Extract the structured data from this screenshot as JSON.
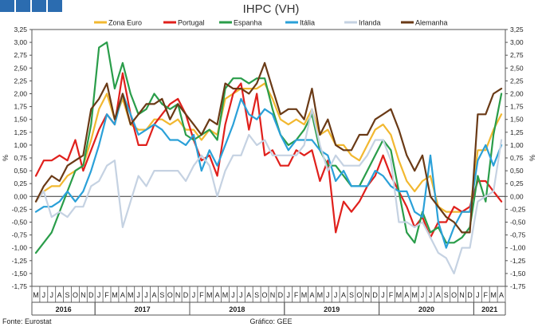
{
  "title": "IHPC (VH)",
  "source": "Fonte: Eurostat",
  "credit": "Gráfico: GEE",
  "header_boxes": {
    "color": "#2b6cb0",
    "count": 4
  },
  "chart_data": {
    "type": "line",
    "title": "IHPC (VH)",
    "ylabel_left": "%",
    "ylabel_right": "%",
    "ylim": [
      -1.75,
      3.25
    ],
    "ytick_step": 0.25,
    "grid": false,
    "legend_position": "top",
    "month_labels": [
      "M",
      "J",
      "J",
      "A",
      "S",
      "O",
      "N",
      "D",
      "J",
      "F",
      "M",
      "A",
      "M",
      "J",
      "J",
      "A",
      "S",
      "O",
      "N",
      "D",
      "J",
      "F",
      "M",
      "A",
      "M",
      "J",
      "J",
      "A",
      "S",
      "O",
      "N",
      "D",
      "J",
      "F",
      "M",
      "A",
      "M",
      "J",
      "J",
      "A",
      "S",
      "O",
      "N",
      "D",
      "J",
      "F",
      "M",
      "A",
      "M",
      "J",
      "J",
      "A",
      "S",
      "O",
      "N",
      "D",
      "J",
      "F",
      "M",
      "A"
    ],
    "year_labels": [
      {
        "label": "2016",
        "start": 0,
        "end": 7
      },
      {
        "label": "2017",
        "start": 8,
        "end": 19
      },
      {
        "label": "2018",
        "start": 20,
        "end": 31
      },
      {
        "label": "2019",
        "start": 32,
        "end": 43
      },
      {
        "label": "2020",
        "start": 44,
        "end": 55
      },
      {
        "label": "2021",
        "start": 56,
        "end": 59
      }
    ],
    "series": [
      {
        "name": "Zona Euro",
        "color": "#f2b830",
        "values": [
          -0.1,
          0.1,
          0.2,
          0.2,
          0.4,
          0.5,
          0.6,
          1.1,
          1.7,
          2.0,
          1.5,
          1.9,
          1.4,
          1.3,
          1.3,
          1.5,
          1.5,
          1.4,
          1.5,
          1.3,
          1.3,
          1.1,
          1.3,
          1.2,
          1.9,
          2.0,
          2.1,
          2.1,
          2.1,
          2.2,
          1.9,
          1.5,
          1.4,
          1.5,
          1.4,
          1.7,
          1.2,
          1.3,
          1.0,
          1.0,
          0.8,
          0.7,
          1.0,
          1.3,
          1.4,
          1.2,
          0.7,
          0.3,
          0.1,
          0.3,
          0.4,
          -0.2,
          -0.3,
          -0.3,
          -0.3,
          -0.3,
          0.9,
          0.9,
          1.3,
          1.6
        ]
      },
      {
        "name": "Portugal",
        "color": "#e0201c",
        "values": [
          0.4,
          0.7,
          0.7,
          0.8,
          0.7,
          1.1,
          0.5,
          0.9,
          1.3,
          1.6,
          1.4,
          2.4,
          1.6,
          1.0,
          1.0,
          1.4,
          1.6,
          1.8,
          1.9,
          1.6,
          1.1,
          0.7,
          0.8,
          0.4,
          1.4,
          2.0,
          2.2,
          1.3,
          2.0,
          0.8,
          0.9,
          0.6,
          0.6,
          0.9,
          0.8,
          0.9,
          0.3,
          0.7,
          -0.7,
          -0.1,
          -0.3,
          -0.1,
          0.2,
          0.4,
          0.8,
          0.4,
          0.1,
          -0.2,
          -0.6,
          -0.4,
          -0.8,
          -0.5,
          -0.5,
          -0.2,
          -0.3,
          -0.2,
          0.3,
          0.3,
          0.1,
          -0.1
        ]
      },
      {
        "name": "Espanha",
        "color": "#2a9d4a",
        "values": [
          -1.1,
          -0.9,
          -0.7,
          -0.3,
          0.1,
          0.5,
          0.6,
          1.4,
          2.9,
          3.0,
          2.1,
          2.6,
          2.0,
          1.6,
          1.7,
          2.0,
          1.8,
          1.7,
          1.8,
          1.2,
          1.1,
          1.2,
          1.3,
          1.1,
          2.1,
          2.3,
          2.3,
          2.2,
          2.3,
          2.3,
          1.7,
          1.2,
          1.0,
          1.1,
          1.3,
          1.6,
          0.9,
          0.6,
          0.6,
          0.4,
          0.2,
          0.2,
          0.5,
          0.8,
          1.1,
          0.9,
          0.1,
          -0.7,
          -0.9,
          -0.3,
          -0.7,
          -0.6,
          -0.9,
          -0.9,
          -0.8,
          -0.6,
          0.4,
          -0.1,
          1.2,
          2.0
        ]
      },
      {
        "name": "Itália",
        "color": "#2aa0d8",
        "values": [
          -0.3,
          -0.2,
          -0.2,
          -0.1,
          0.1,
          -0.1,
          0.1,
          0.5,
          1.0,
          1.6,
          1.4,
          2.0,
          1.6,
          1.2,
          1.3,
          1.4,
          1.3,
          1.1,
          1.1,
          1.0,
          1.2,
          0.5,
          0.9,
          0.6,
          1.0,
          1.4,
          1.9,
          1.6,
          1.5,
          1.7,
          1.6,
          1.2,
          0.9,
          1.1,
          1.1,
          1.1,
          0.9,
          0.8,
          0.3,
          0.5,
          0.2,
          0.2,
          0.2,
          0.5,
          0.4,
          0.2,
          0.1,
          0.1,
          -0.3,
          -0.4,
          0.8,
          -0.5,
          -1.0,
          -0.6,
          -0.3,
          -0.3,
          0.7,
          1.0,
          0.6,
          1.0
        ]
      },
      {
        "name": "Irlanda",
        "color": "#c5d2e2",
        "values": [
          -0.1,
          0.1,
          -0.4,
          -0.3,
          -0.4,
          -0.2,
          -0.2,
          0.2,
          0.3,
          0.6,
          0.7,
          -0.6,
          -0.1,
          0.4,
          0.2,
          0.5,
          0.5,
          0.5,
          0.5,
          0.3,
          0.6,
          0.8,
          0.6,
          0.0,
          0.5,
          0.8,
          0.8,
          1.2,
          1.0,
          1.1,
          0.8,
          0.8,
          0.8,
          0.8,
          1.0,
          1.7,
          1.0,
          0.5,
          0.8,
          0.6,
          0.6,
          0.6,
          0.8,
          1.1,
          1.1,
          0.7,
          -0.5,
          -0.5,
          -0.6,
          -0.5,
          -0.8,
          -1.1,
          -1.2,
          -1.5,
          -1.0,
          -1.0,
          -0.1,
          0.0,
          0.1,
          1.1
        ]
      },
      {
        "name": "Alemanha",
        "color": "#6a3a16",
        "values": [
          -0.1,
          0.2,
          0.4,
          0.3,
          0.6,
          0.7,
          0.8,
          1.7,
          1.9,
          2.2,
          1.5,
          2.0,
          1.4,
          1.6,
          1.8,
          1.8,
          1.9,
          1.5,
          1.8,
          1.6,
          1.4,
          1.2,
          1.5,
          1.4,
          2.2,
          2.1,
          2.1,
          2.0,
          2.2,
          2.6,
          2.1,
          1.6,
          1.7,
          1.7,
          1.5,
          2.1,
          1.2,
          1.5,
          1.0,
          0.9,
          0.9,
          1.2,
          1.2,
          1.5,
          1.6,
          1.7,
          1.3,
          0.8,
          0.5,
          0.8,
          0.0,
          -0.2,
          -0.4,
          -0.5,
          -0.7,
          -0.7,
          1.6,
          1.6,
          2.0,
          2.1
        ]
      }
    ]
  }
}
